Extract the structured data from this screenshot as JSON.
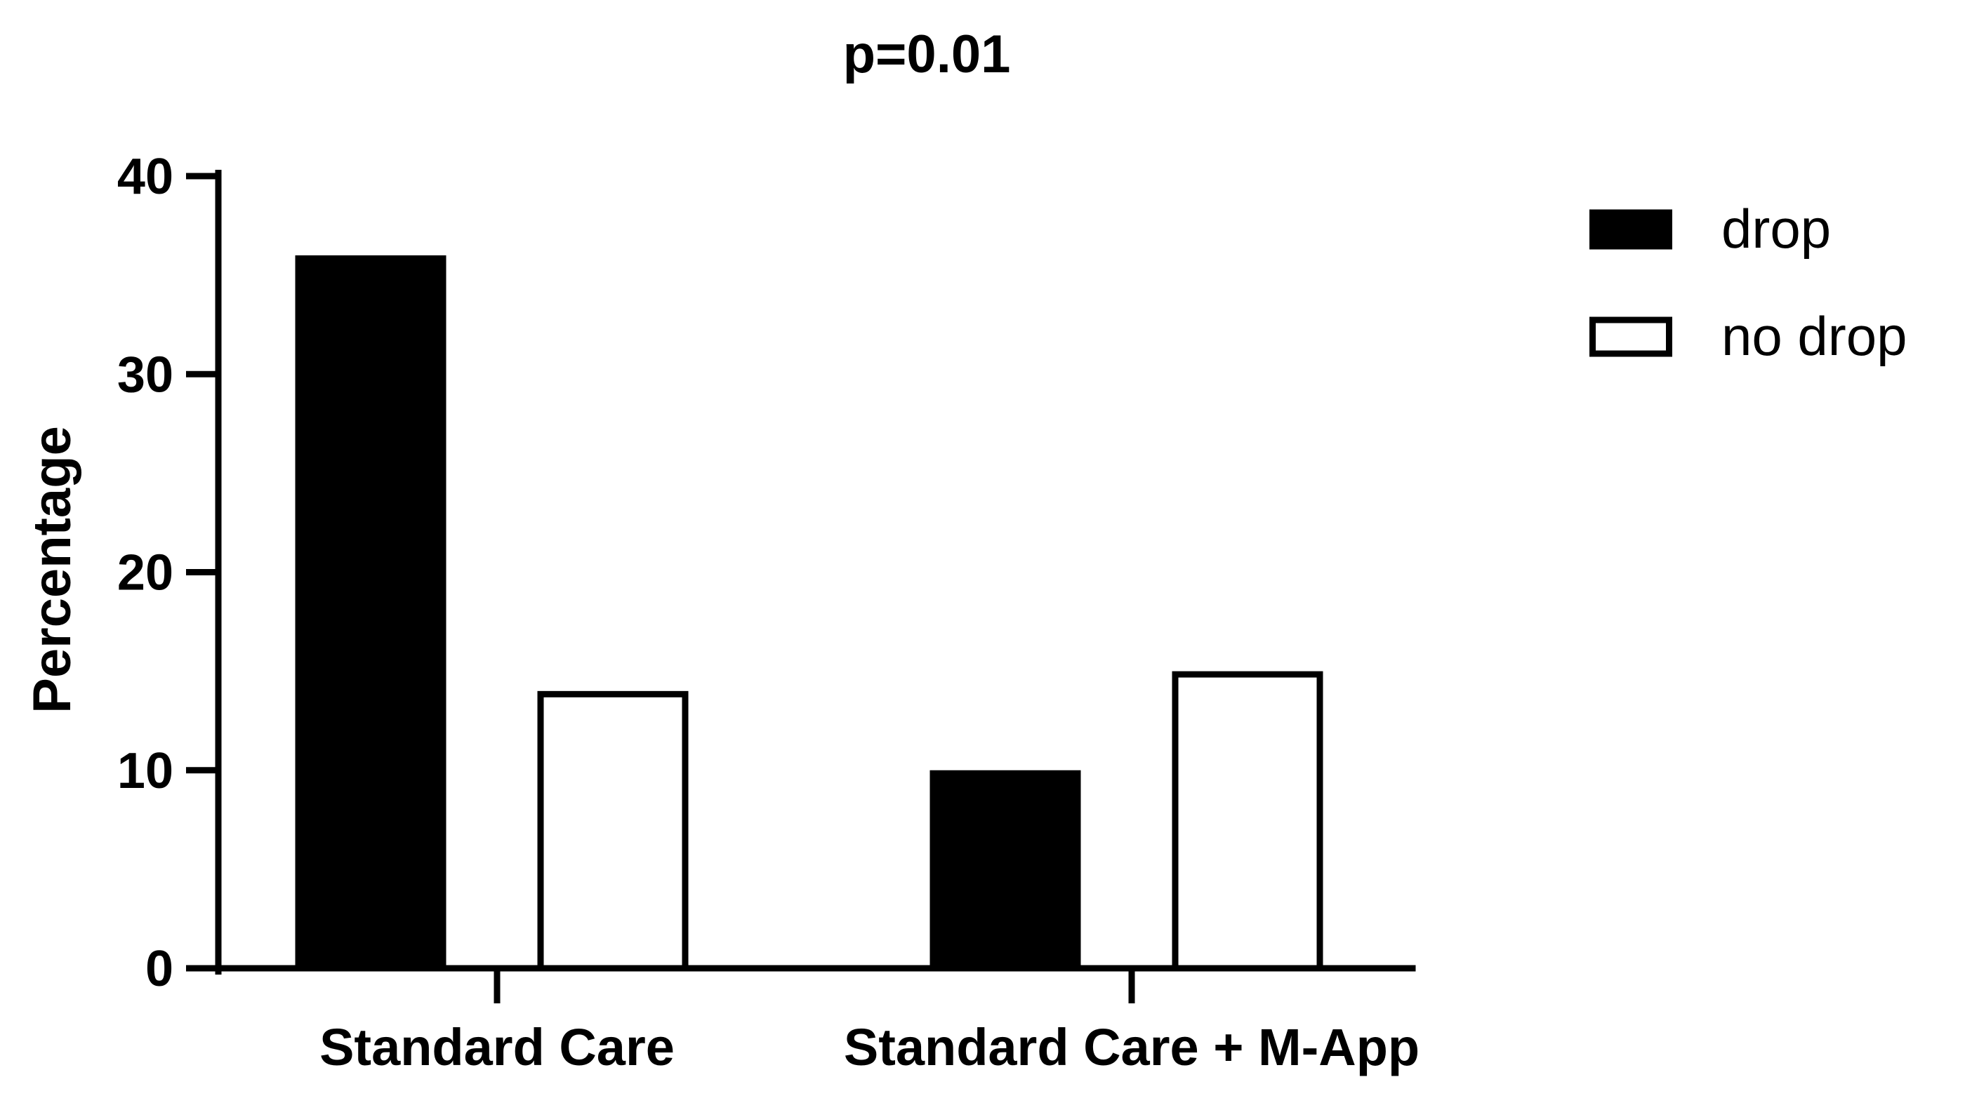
{
  "chart_data": {
    "type": "bar",
    "title": "p=0.01",
    "xlabel": "",
    "ylabel": "Percentage",
    "ylim": [
      0,
      40
    ],
    "yticks": [
      0,
      10,
      20,
      30,
      40
    ],
    "categories": [
      "Standard Care",
      "Standard Care + M-App"
    ],
    "series": [
      {
        "name": "drop",
        "values": [
          36,
          10
        ],
        "fill": "#000000",
        "stroke": "#000000"
      },
      {
        "name": "no drop",
        "values": [
          14,
          15
        ],
        "fill": "#ffffff",
        "stroke": "#000000"
      }
    ],
    "grid": false,
    "legend": "top-right"
  }
}
